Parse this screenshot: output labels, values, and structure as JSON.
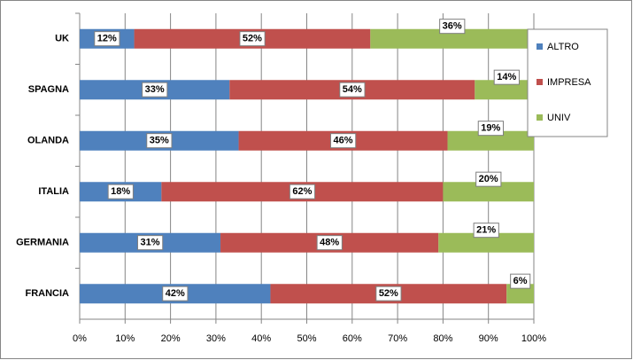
{
  "chart_data": {
    "type": "stacked-bar-horizontal",
    "categories": [
      "UK",
      "SPAGNA",
      "OLANDA",
      "ITALIA",
      "GERMANIA",
      "FRANCIA"
    ],
    "series": [
      {
        "name": "ALTRO",
        "color": "#4f81bd",
        "values": [
          12,
          33,
          35,
          18,
          31,
          42
        ],
        "value_labels": [
          "12%",
          "33%",
          "35%",
          "18%",
          "31%",
          "42%"
        ]
      },
      {
        "name": "IMPRESA",
        "color": "#c0504d",
        "values": [
          52,
          54,
          46,
          62,
          48,
          52
        ],
        "value_labels": [
          "52%",
          "54%",
          "46%",
          "62%",
          "48%",
          "52%"
        ]
      },
      {
        "name": "UNIV",
        "color": "#9bbb59",
        "values": [
          36,
          14,
          19,
          20,
          21,
          6
        ],
        "value_labels": [
          "36%",
          "14%",
          "19%",
          "20%",
          "21%",
          "6%"
        ]
      }
    ],
    "xlim": [
      0,
      100
    ],
    "xticks": [
      {
        "value": 0,
        "label": "0%"
      },
      {
        "value": 10,
        "label": "10%"
      },
      {
        "value": 20,
        "label": "20%"
      },
      {
        "value": 30,
        "label": "30%"
      },
      {
        "value": 40,
        "label": "40%"
      },
      {
        "value": 50,
        "label": "50%"
      },
      {
        "value": 60,
        "label": "60%"
      },
      {
        "value": 70,
        "label": "70%"
      },
      {
        "value": 80,
        "label": "80%"
      },
      {
        "value": 90,
        "label": "90%"
      },
      {
        "value": 100,
        "label": "100%"
      }
    ],
    "grid": true,
    "legend": "top-right"
  }
}
